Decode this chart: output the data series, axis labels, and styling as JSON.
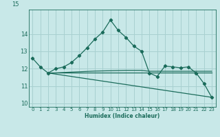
{
  "xlabel": "Humidex (Indice chaleur)",
  "background_color": "#c8e8e8",
  "grid_color": "#a8d0d0",
  "line_color": "#1a6b5a",
  "ylim": [
    9.8,
    15.4
  ],
  "xlim": [
    -0.5,
    23.5
  ],
  "yticks": [
    10,
    11,
    12,
    13,
    14
  ],
  "xticks": [
    0,
    1,
    2,
    3,
    4,
    5,
    6,
    7,
    8,
    9,
    10,
    11,
    12,
    13,
    14,
    15,
    16,
    17,
    18,
    19,
    20,
    21,
    22,
    23
  ],
  "series1_x": [
    0,
    1,
    2,
    3,
    4,
    5,
    6,
    7,
    8,
    9,
    10,
    11,
    12,
    13,
    14,
    15,
    16,
    17,
    18,
    19,
    20,
    21,
    22,
    23
  ],
  "series1_y": [
    12.6,
    12.1,
    11.75,
    12.0,
    12.1,
    12.35,
    12.75,
    13.2,
    13.7,
    14.1,
    14.8,
    14.2,
    13.8,
    13.3,
    13.0,
    11.75,
    11.55,
    12.15,
    12.1,
    12.05,
    12.1,
    11.75,
    11.15,
    10.35
  ],
  "series2_x": [
    2,
    3,
    4,
    5,
    6,
    7,
    8,
    9,
    10,
    11,
    12,
    13,
    14,
    15,
    16,
    17,
    18,
    19,
    20,
    21,
    22,
    23
  ],
  "series2_y": [
    11.75,
    11.75,
    11.78,
    11.8,
    11.82,
    11.84,
    11.86,
    11.87,
    11.88,
    11.89,
    11.9,
    11.9,
    11.9,
    11.85,
    11.85,
    11.85,
    11.85,
    11.85,
    11.85,
    11.85,
    11.85,
    11.85
  ],
  "series3_x": [
    2,
    23
  ],
  "series3_y": [
    11.75,
    10.35
  ],
  "series4_x": [
    2,
    23
  ],
  "series4_y": [
    11.77,
    11.77
  ],
  "ytick_label_top": "15"
}
